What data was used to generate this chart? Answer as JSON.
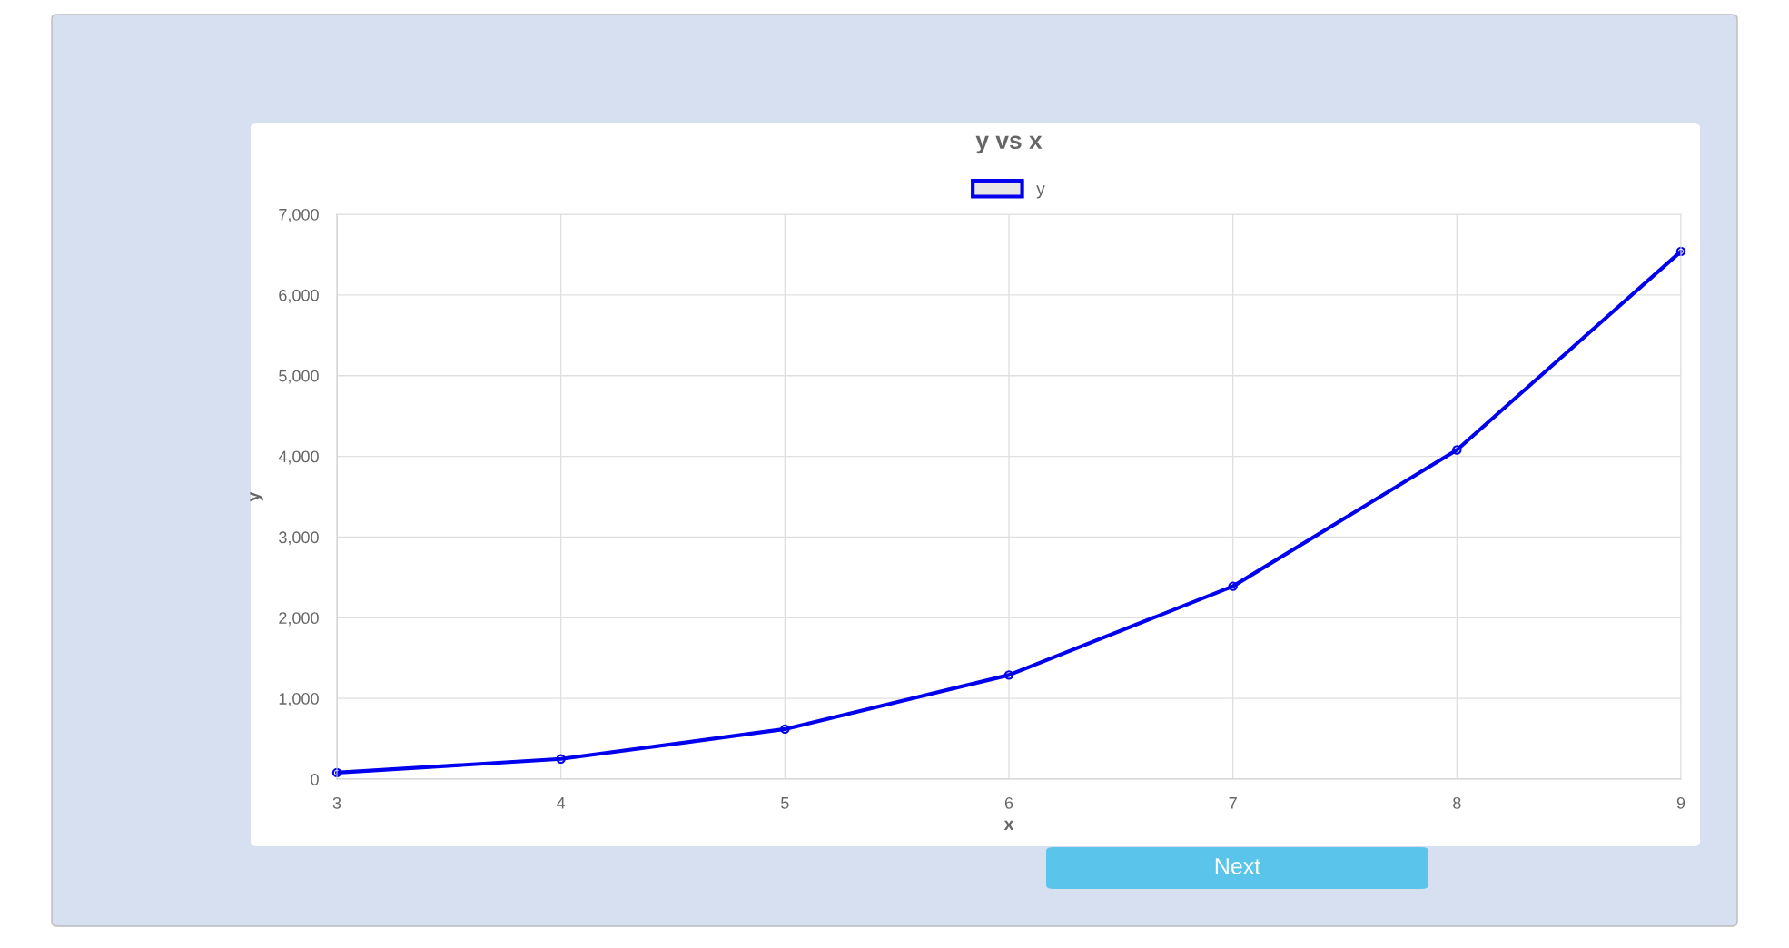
{
  "chart_data": {
    "type": "line",
    "title": "y vs x",
    "xlabel": "x",
    "ylabel": "y",
    "x": [
      3,
      4,
      5,
      6,
      7,
      8,
      9
    ],
    "series": [
      {
        "name": "y",
        "color": "#0000ee",
        "values": [
          80,
          250,
          620,
          1290,
          2390,
          4080,
          6540
        ]
      }
    ],
    "xlim": [
      3,
      9
    ],
    "xticks": [
      3,
      4,
      5,
      6,
      7,
      8,
      9
    ],
    "ylim": [
      0,
      7000
    ],
    "yticks": [
      {
        "value": 0,
        "label": "0"
      },
      {
        "value": 1000,
        "label": "1,000"
      },
      {
        "value": 2000,
        "label": "2,000"
      },
      {
        "value": 3000,
        "label": "3,000"
      },
      {
        "value": 4000,
        "label": "4,000"
      },
      {
        "value": 5000,
        "label": "5,000"
      },
      {
        "value": 6000,
        "label": "6,000"
      },
      {
        "value": 7000,
        "label": "7,000"
      }
    ],
    "grid": true,
    "legend": "top",
    "marker": "circle",
    "line_style": "solid",
    "annotations": [
      "Next"
    ]
  }
}
